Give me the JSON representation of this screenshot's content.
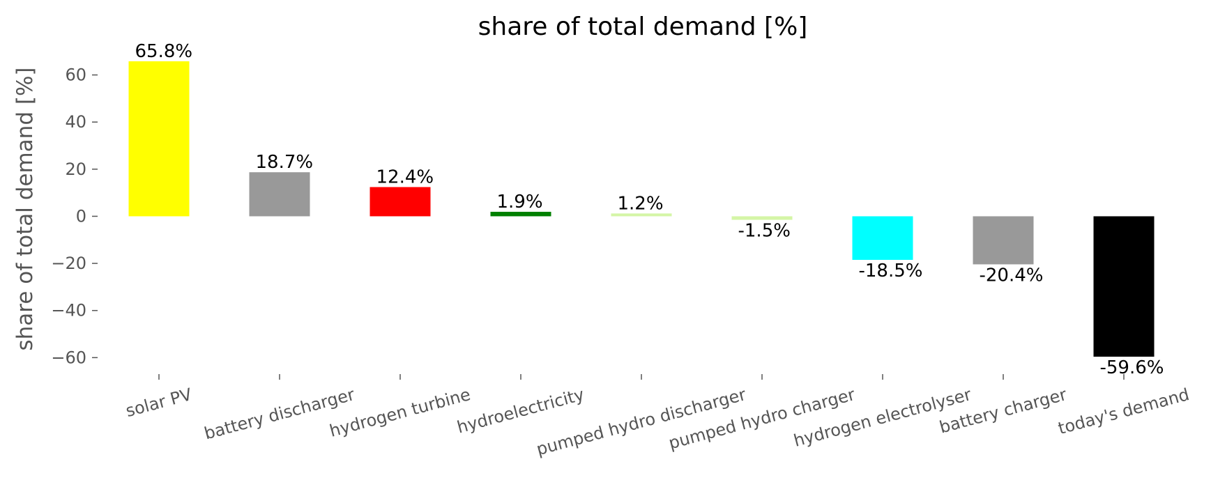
{
  "chart_data": {
    "type": "bar",
    "title": "share of total demand [%]",
    "ylabel": "share of total demand [%]",
    "categories": [
      "solar PV",
      "battery discharger",
      "hydrogen turbine",
      "hydroelectricity",
      "pumped hydro discharger",
      "pumped hydro charger",
      "hydrogen electrolyser",
      "battery charger",
      "today's demand"
    ],
    "values": [
      65.8,
      18.7,
      12.4,
      1.9,
      1.2,
      -1.5,
      -18.5,
      -20.4,
      -59.6
    ],
    "value_labels": [
      "65.8%",
      "18.7%",
      "12.4%",
      "1.9%",
      "1.2%",
      "-1.5%",
      "-18.5%",
      "-20.4%",
      "-59.6%"
    ],
    "colors": [
      "#ffff00",
      "#999999",
      "#ff0000",
      "#008000",
      "#d4f5a6",
      "#d4f5a6",
      "#00ffff",
      "#999999",
      "#000000"
    ],
    "ylim": [
      -67,
      72
    ],
    "yticks": [
      {
        "value": -60,
        "label": "−60"
      },
      {
        "value": -40,
        "label": "−40"
      },
      {
        "value": -20,
        "label": "−20"
      },
      0,
      20,
      40,
      60
    ],
    "grid": false
  }
}
